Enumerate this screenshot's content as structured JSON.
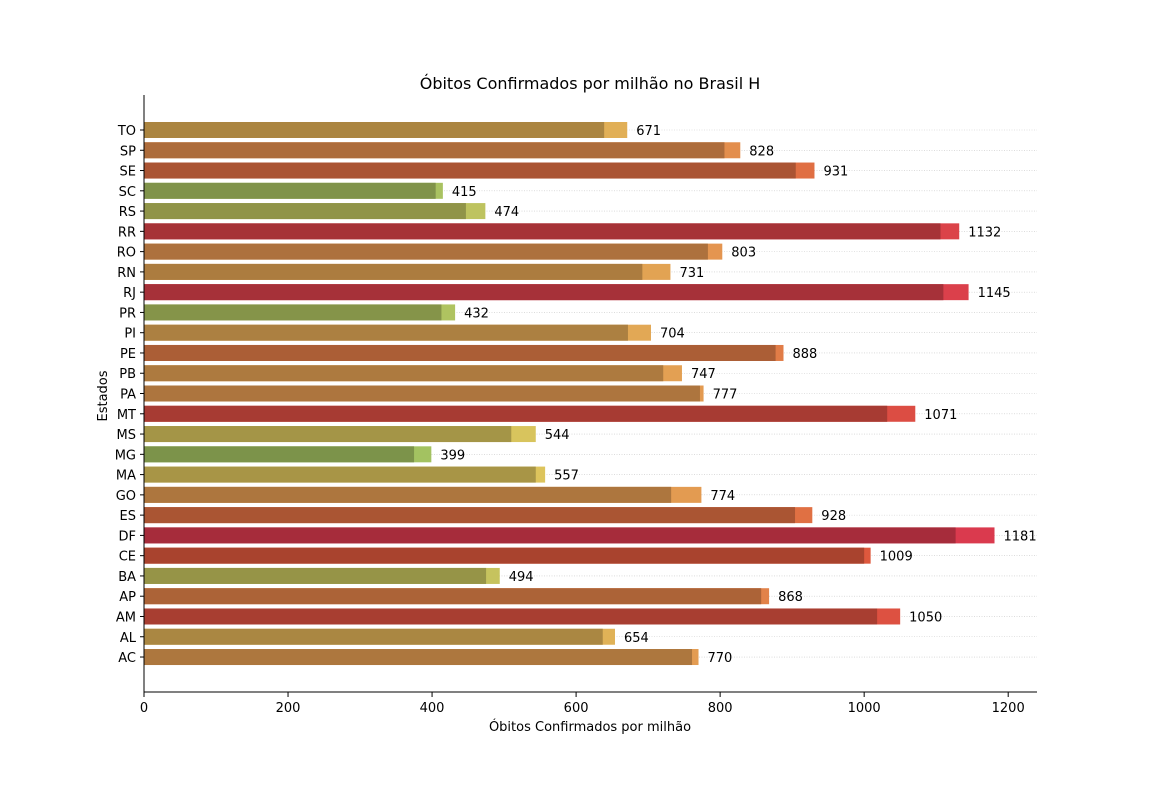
{
  "chart_data": {
    "type": "bar",
    "orientation": "horizontal",
    "title": "Óbitos Confirmados por milhão no Brasil H",
    "xlabel": "Óbitos Confirmados por milhão",
    "ylabel": "Estados",
    "xlim": [
      0,
      1240
    ],
    "xticks": [
      "0",
      "200",
      "400",
      "600",
      "800",
      "1000",
      "1200"
    ],
    "grid": "horizontal-dotted",
    "categories": [
      "TO",
      "SP",
      "SE",
      "SC",
      "RS",
      "RR",
      "RO",
      "RN",
      "RJ",
      "PR",
      "PI",
      "PE",
      "PB",
      "PA",
      "MT",
      "MS",
      "MG",
      "MA",
      "GO",
      "ES",
      "DF",
      "CE",
      "BA",
      "AP",
      "AM",
      "AL",
      "AC"
    ],
    "values": [
      671,
      828,
      931,
      415,
      474,
      1132,
      803,
      731,
      1145,
      432,
      704,
      888,
      747,
      777,
      1071,
      544,
      399,
      557,
      774,
      928,
      1181,
      1009,
      494,
      868,
      1050,
      654,
      770
    ],
    "previous_values": [
      639,
      806,
      905,
      405,
      447,
      1106,
      783,
      692,
      1110,
      413,
      672,
      877,
      721,
      772,
      1032,
      510,
      375,
      544,
      732,
      904,
      1127,
      1000,
      475,
      857,
      1018,
      637,
      761
    ],
    "value_labels": [
      "671",
      "828",
      "931",
      "415",
      "474",
      "1132",
      "803",
      "731",
      "1145",
      "432",
      "704",
      "888",
      "747",
      "777",
      "1071",
      "544",
      "399",
      "557",
      "774",
      "928",
      "1181",
      "1009",
      "494",
      "868",
      "1050",
      "654",
      "770"
    ]
  }
}
